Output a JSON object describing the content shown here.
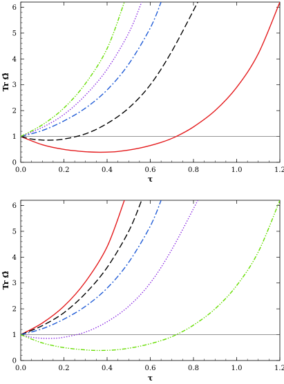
{
  "chart_data": [
    {
      "type": "line",
      "xlabel": "τ",
      "ylabel": "Tr Ω̂",
      "xlim": [
        0,
        1.2
      ],
      "ylim": [
        0,
        6.2
      ],
      "x_ticks": [
        "0.0",
        "0.2",
        "0.4",
        "0.6",
        "0.8",
        "1.0",
        "1.2"
      ],
      "y_ticks": [
        "0",
        "1",
        "2",
        "3",
        "4",
        "5",
        "6"
      ],
      "reference_line": {
        "y": 1
      },
      "series": [
        {
          "color": "#e41a1c",
          "dash": "solid",
          "x": [
            0,
            0.1,
            0.2,
            0.3,
            0.37,
            0.45,
            0.55,
            0.65,
            0.72,
            0.8,
            0.9,
            1.0,
            1.1,
            1.2
          ],
          "y": [
            1,
            0.68,
            0.5,
            0.41,
            0.39,
            0.42,
            0.55,
            0.77,
            1.0,
            1.37,
            2.0,
            2.9,
            4.2,
            6.2
          ]
        },
        {
          "color": "#000000",
          "dash": "long-dash",
          "x": [
            0,
            0.05,
            0.1,
            0.15,
            0.2,
            0.3,
            0.4,
            0.5,
            0.6,
            0.7,
            0.82
          ],
          "y": [
            1,
            0.9,
            0.86,
            0.86,
            0.9,
            1.1,
            1.5,
            2.1,
            3.0,
            4.3,
            6.2
          ]
        },
        {
          "color": "#1f5bd6",
          "dash": "dash-dot",
          "x": [
            0,
            0.1,
            0.2,
            0.3,
            0.4,
            0.5,
            0.6,
            0.65
          ],
          "y": [
            1,
            1.23,
            1.6,
            2.1,
            2.8,
            3.8,
            5.2,
            6.2
          ]
        },
        {
          "color": "#8a2be2",
          "dash": "dotted",
          "x": [
            0,
            0.1,
            0.2,
            0.3,
            0.4,
            0.5,
            0.56
          ],
          "y": [
            1,
            1.35,
            1.85,
            2.6,
            3.6,
            5.0,
            6.2
          ]
        },
        {
          "color": "#66dd00",
          "dash": "dash-dot-dot",
          "x": [
            0,
            0.1,
            0.2,
            0.3,
            0.4,
            0.48
          ],
          "y": [
            1,
            1.45,
            2.1,
            3.05,
            4.4,
            6.2
          ]
        }
      ]
    },
    {
      "type": "line",
      "xlabel": "τ",
      "ylabel": "Tr Ω̂",
      "xlim": [
        0,
        1.2
      ],
      "ylim": [
        0,
        6.2
      ],
      "x_ticks": [
        "0.0",
        "0.2",
        "0.4",
        "0.6",
        "0.8",
        "1.0",
        "1.2"
      ],
      "y_ticks": [
        "0",
        "1",
        "2",
        "3",
        "4",
        "5",
        "6"
      ],
      "reference_line": {
        "y": 1
      },
      "series": [
        {
          "color": "#e41a1c",
          "dash": "solid",
          "x": [
            0,
            0.1,
            0.2,
            0.3,
            0.4,
            0.48
          ],
          "y": [
            1,
            1.45,
            2.1,
            3.05,
            4.4,
            6.2
          ]
        },
        {
          "color": "#000000",
          "dash": "long-dash",
          "x": [
            0,
            0.1,
            0.2,
            0.3,
            0.4,
            0.5,
            0.56
          ],
          "y": [
            1,
            1.35,
            1.85,
            2.6,
            3.6,
            5.0,
            6.2
          ]
        },
        {
          "color": "#1f5bd6",
          "dash": "dash-dot",
          "x": [
            0,
            0.1,
            0.2,
            0.3,
            0.4,
            0.5,
            0.6,
            0.65
          ],
          "y": [
            1,
            1.23,
            1.6,
            2.1,
            2.8,
            3.8,
            5.2,
            6.2
          ]
        },
        {
          "color": "#8a2be2",
          "dash": "dotted",
          "x": [
            0,
            0.05,
            0.1,
            0.15,
            0.2,
            0.3,
            0.4,
            0.5,
            0.6,
            0.7,
            0.82
          ],
          "y": [
            1,
            0.9,
            0.86,
            0.86,
            0.9,
            1.1,
            1.5,
            2.1,
            3.0,
            4.3,
            6.2
          ]
        },
        {
          "color": "#66dd00",
          "dash": "dash-dot-dot",
          "x": [
            0,
            0.1,
            0.2,
            0.3,
            0.37,
            0.45,
            0.55,
            0.65,
            0.72,
            0.8,
            0.9,
            1.0,
            1.1,
            1.2
          ],
          "y": [
            1,
            0.68,
            0.5,
            0.41,
            0.39,
            0.42,
            0.55,
            0.77,
            1.0,
            1.37,
            2.0,
            2.9,
            4.2,
            6.2
          ]
        }
      ]
    }
  ]
}
